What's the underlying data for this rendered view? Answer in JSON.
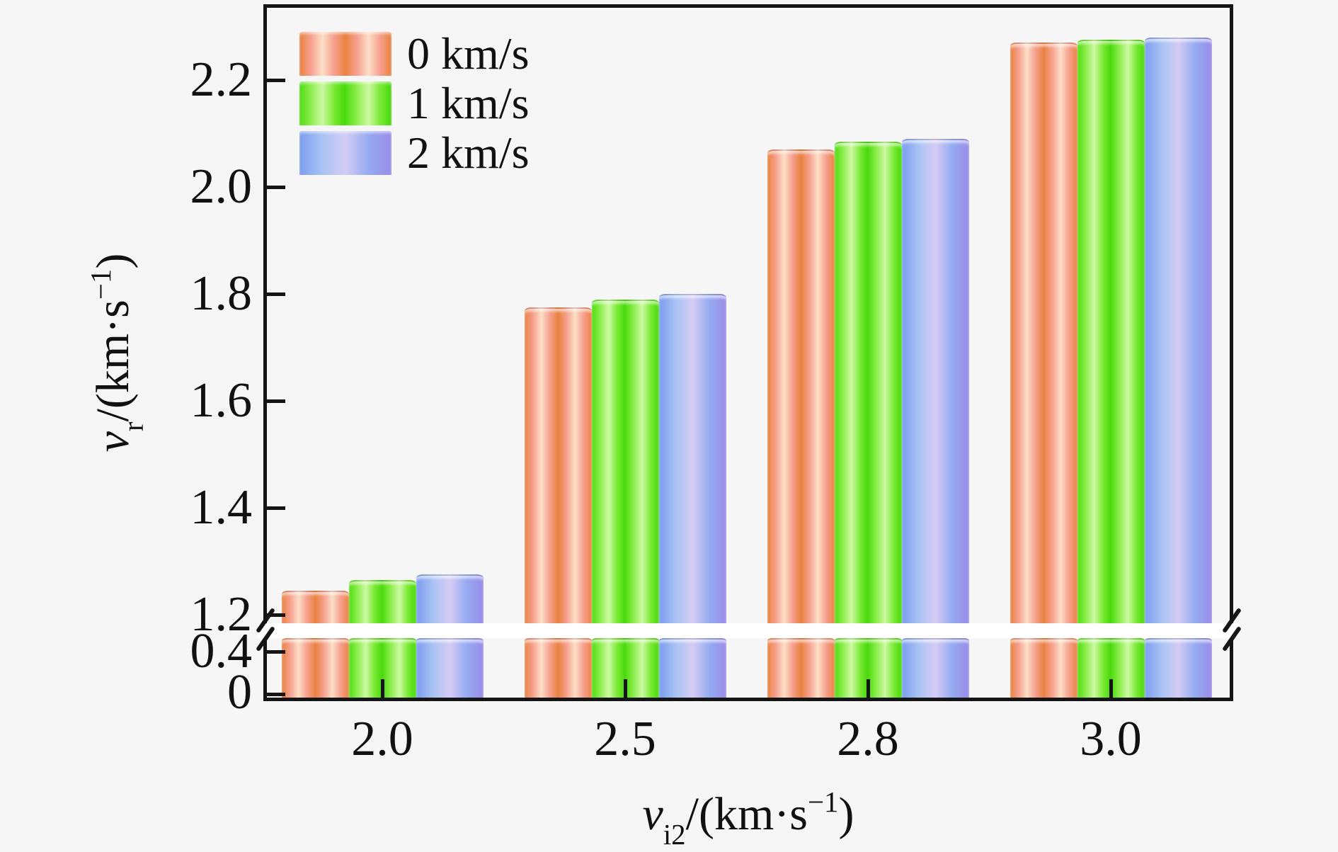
{
  "figure": {
    "background_color": "#f6f6f6",
    "axis_color": "#151515",
    "break_band_color": "#ffffff"
  },
  "legend": {
    "position": "top-left",
    "items": [
      {
        "key": "0kms",
        "label": "0 km/s"
      },
      {
        "key": "1kms",
        "label": "1 km/s"
      },
      {
        "key": "2kms",
        "label": "2 km/s"
      }
    ]
  },
  "y_axis": {
    "title": {
      "var": "v",
      "sub": "r",
      "mid": "/(km·s",
      "sup": "−1",
      "close": ")"
    },
    "upper_ticks": [
      {
        "label": "1.2",
        "value": 1.2
      },
      {
        "label": "1.4",
        "value": 1.4
      },
      {
        "label": "1.6",
        "value": 1.6
      },
      {
        "label": "1.8",
        "value": 1.8
      },
      {
        "label": "2.0",
        "value": 2.0
      },
      {
        "label": "2.2",
        "value": 2.2
      }
    ],
    "lower_ticks": [
      {
        "label": "0",
        "value": 0
      },
      {
        "label": "0.4",
        "value": 0.4
      }
    ]
  },
  "x_axis": {
    "title": {
      "var": "v",
      "sub": "i2",
      "mid": "/(km·s",
      "sup": "−1",
      "close": ")"
    }
  },
  "chart_data": {
    "type": "bar",
    "title": "",
    "xlabel": "v_i2/(km·s^-1)",
    "ylabel": "v_r/(km·s^-1)",
    "categories": [
      "2.0",
      "2.5",
      "2.8",
      "3.0"
    ],
    "series": [
      {
        "name": "0 km/s",
        "key": "0kms",
        "values": [
          1.245,
          1.775,
          2.07,
          2.27
        ]
      },
      {
        "name": "1 km/s",
        "key": "1kms",
        "values": [
          1.265,
          1.79,
          2.085,
          2.275
        ]
      },
      {
        "name": "2 km/s",
        "key": "2kms",
        "values": [
          1.275,
          1.8,
          2.09,
          2.28
        ]
      }
    ],
    "y_axis_break": [
      0.45,
      1.17
    ],
    "ylim": [
      [
        0,
        0.45
      ],
      [
        1.17,
        2.34
      ]
    ],
    "yticks_upper": [
      1.2,
      1.4,
      1.6,
      1.8,
      2.0,
      2.2
    ],
    "yticks_lower": [
      0,
      0.4
    ],
    "grid": false,
    "legend_position": "top-left",
    "series_colors": [
      {
        "key": "0kms",
        "stops": [
          "#e9823f",
          "#f6a08e",
          "#fcdfc6",
          "#f6a08e",
          "#e9823f"
        ],
        "cycles": 2
      },
      {
        "key": "1kms",
        "stops": [
          "#4fdc10",
          "#8dee4d",
          "#ccf9a3",
          "#7bea35",
          "#46d80a"
        ],
        "cycles": 2
      },
      {
        "key": "2kms",
        "stops": [
          "#7c9cef",
          "#a9c3f4",
          "#d4ccf4",
          "#95abf1",
          "#9a8ce9"
        ],
        "cycles": 1
      }
    ]
  }
}
